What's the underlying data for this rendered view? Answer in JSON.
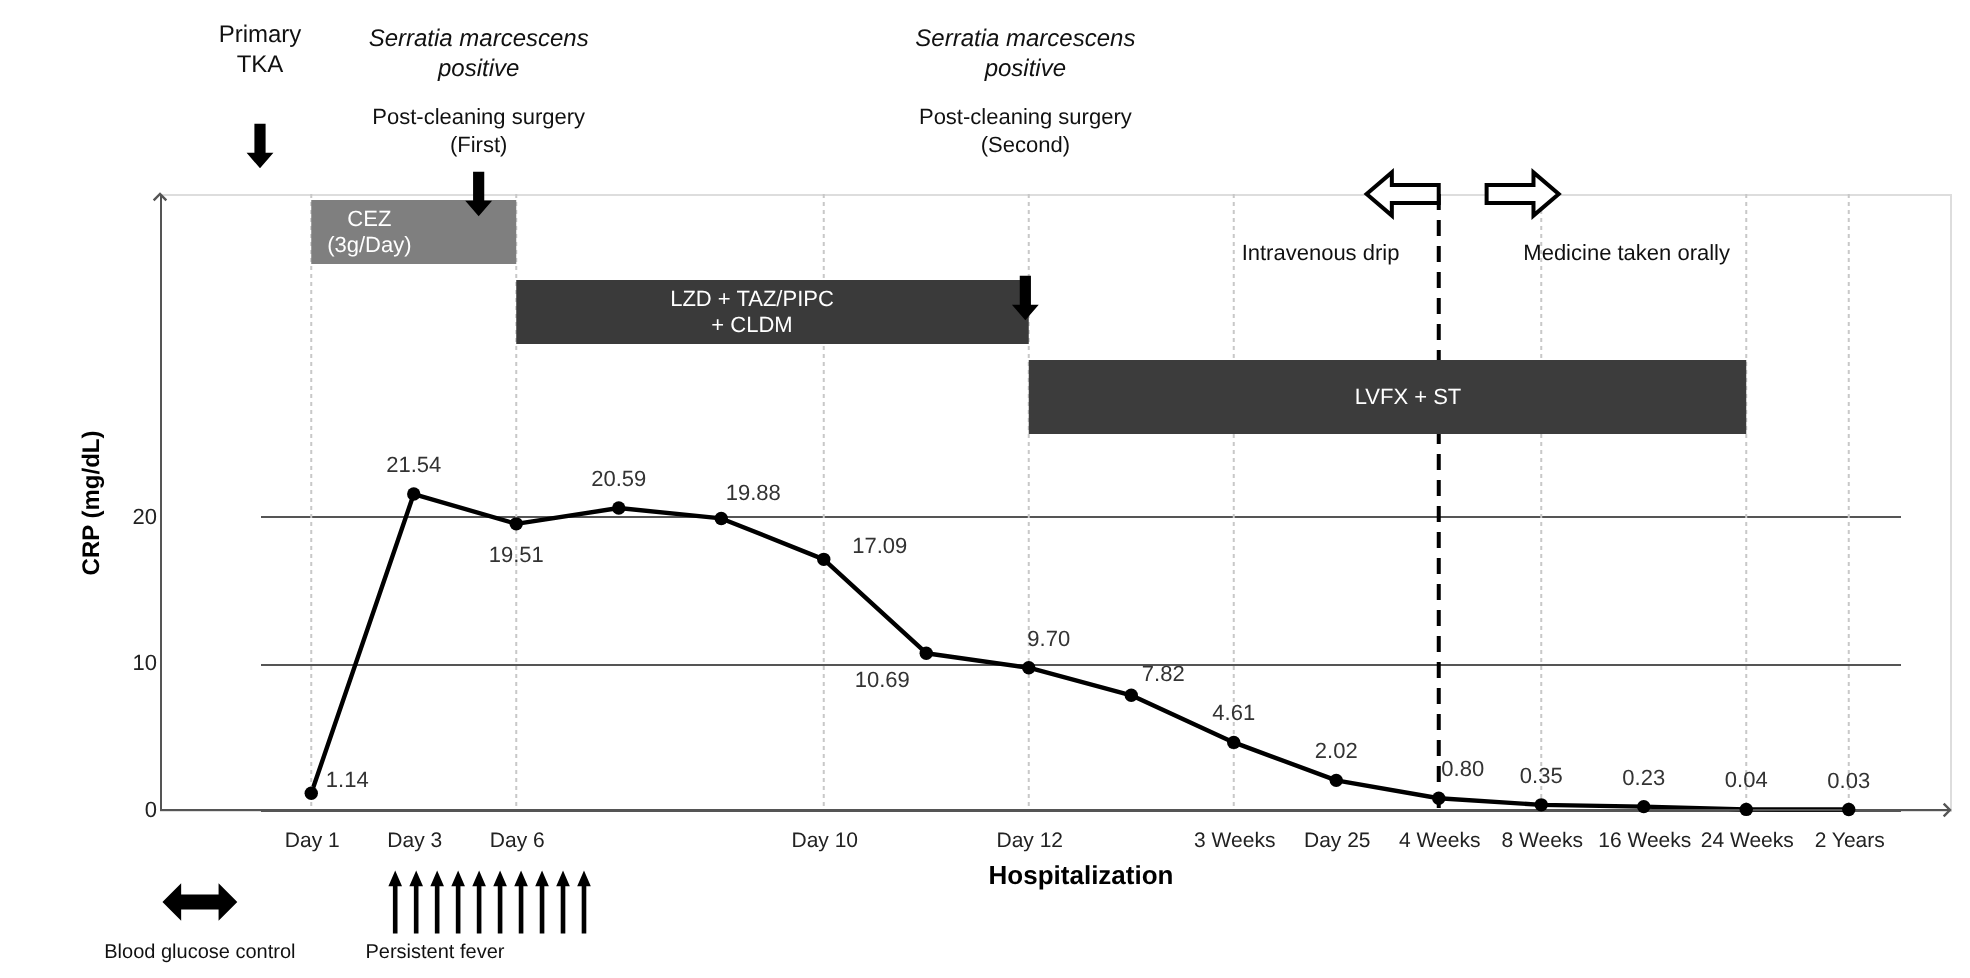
{
  "chart_data": {
    "type": "line",
    "xlabel": "Hospitalization",
    "ylabel": "CRP (mg/dL)",
    "categories": [
      "Day 1",
      "Day 3",
      "Day 6",
      null,
      null,
      "Day 10",
      null,
      "Day 12",
      null,
      "3 Weeks",
      "Day 25",
      "4 Weeks",
      "8 Weeks",
      "16 Weeks",
      "24 Weeks",
      "2 Years"
    ],
    "series": [
      {
        "color": "#000000",
        "values": [
          1.14,
          21.54,
          19.51,
          20.59,
          19.88,
          17.09,
          10.69,
          9.7,
          7.82,
          4.61,
          2.02,
          0.8,
          0.35,
          0.23,
          0.04,
          0.03
        ],
        "value_labels": [
          "1.14",
          "21.54",
          "19.51",
          "20.59",
          "19.88",
          "17.09",
          "10.69",
          "9.70",
          "7.82",
          "4.61",
          "2.02",
          "0.80",
          "0.35",
          "0.23",
          "0.04",
          "0.03"
        ]
      }
    ],
    "marker": "circle",
    "line_style": "solid",
    "ylim": [
      0,
      42
    ],
    "yticks": [
      0,
      10,
      20
    ],
    "grid": "y",
    "bands": [
      {
        "axis": "x",
        "from": "Day 1",
        "to": "Day 6",
        "label": "CEZ\n(3g/Day)",
        "color": "#7f7f7f"
      },
      {
        "axis": "x",
        "from": "Day 6",
        "to": "Day 12",
        "label": "LZD + TAZ/PIPC\n+ CLDM",
        "color": "#3a3a3a"
      },
      {
        "axis": "x",
        "from": "Day 12",
        "to": "24 Weeks",
        "label": "LVFX + ST",
        "color": "#3c3c3c"
      }
    ],
    "ref_lines": [
      {
        "axis": "x",
        "value": "4 Weeks",
        "color": "#000000",
        "line_style": "dashed"
      },
      {
        "axis": "x",
        "value": "Day 1",
        "color": "#c8c8c8",
        "line_style": "dotted"
      },
      {
        "axis": "x",
        "value": "Day 6",
        "color": "#c8c8c8",
        "line_style": "dotted"
      },
      {
        "axis": "x",
        "value": "Day 10",
        "color": "#c8c8c8",
        "line_style": "dotted"
      },
      {
        "axis": "x",
        "value": "Day 12",
        "color": "#c8c8c8",
        "line_style": "dotted"
      },
      {
        "axis": "x",
        "value": "3 Weeks",
        "color": "#c8c8c8",
        "line_style": "dotted"
      },
      {
        "axis": "x",
        "value": "8 Weeks",
        "color": "#c8c8c8",
        "line_style": "dotted"
      },
      {
        "axis": "x",
        "value": "24 Weeks",
        "color": "#c8c8c8",
        "line_style": "dotted"
      },
      {
        "axis": "x",
        "value": "2 Years",
        "color": "#c8c8c8",
        "line_style": "dotted"
      }
    ],
    "annotations": [
      "Primary\nTKA",
      "Serratia marcescens\npositive",
      "Post-cleaning surgery\n(First)",
      "Serratia marcescens\npositive",
      "Post-cleaning surgery\n(Second)",
      "Intravenous drip",
      "Medicine taken orally",
      "Blood glucose control",
      "Persistent fever"
    ]
  }
}
